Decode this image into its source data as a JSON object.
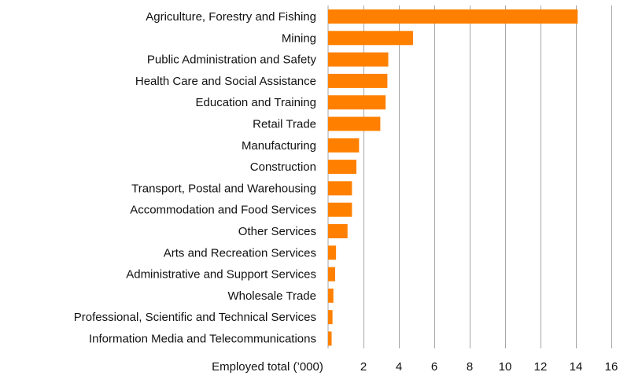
{
  "chart_data": {
    "type": "bar",
    "orientation": "horizontal",
    "title": "",
    "xlabel": "Employed total (’000)",
    "ylabel": "",
    "categories": [
      "Agriculture, Forestry and Fishing",
      "Mining",
      "Public Administration and Safety",
      "Health Care and Social Assistance",
      "Education and Training",
      "Retail Trade",
      "Manufacturing",
      "Construction",
      "Transport, Postal and Warehousing",
      "Accommodation and Food Services",
      "Other Services",
      "Arts and Recreation Services",
      "Administrative and Support Services",
      "Wholesale Trade",
      "Professional, Scientific and Technical Services",
      "Information Media and Telecommunications"
    ],
    "values": [
      14.1,
      4.8,
      3.4,
      3.35,
      3.25,
      2.95,
      1.75,
      1.6,
      1.35,
      1.35,
      1.1,
      0.45,
      0.4,
      0.3,
      0.25,
      0.2
    ],
    "xlim": [
      0,
      16
    ],
    "x_ticks": [
      2,
      4,
      6,
      8,
      10,
      12,
      14,
      16
    ],
    "x_tick_labels": [
      "2",
      "4",
      "6",
      "8",
      "10",
      "12",
      "14",
      "16"
    ],
    "grid": true,
    "legend": "none",
    "bar_color": "#FF8000",
    "grid_color": "#A6A6A6"
  }
}
